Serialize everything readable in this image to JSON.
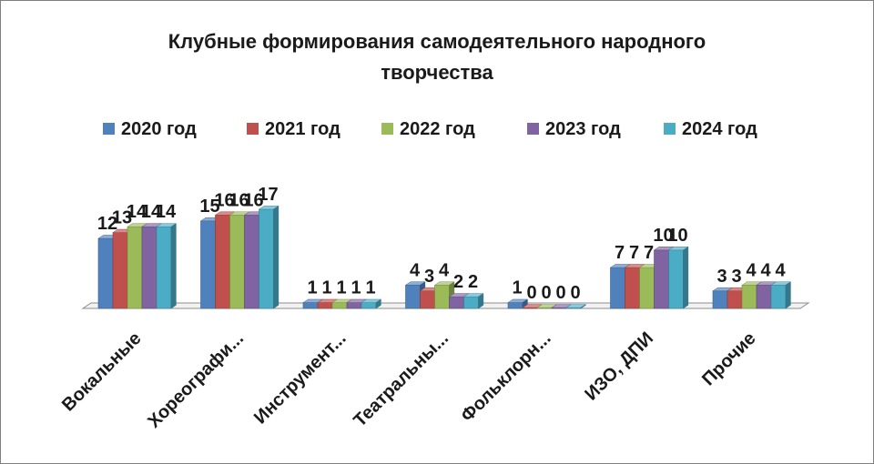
{
  "chart_data": {
    "type": "bar",
    "title": "Клубные формирования самодеятельного народного творчества",
    "categories": [
      "Вокальные",
      "Хореографи...",
      "Инструмент...",
      "Театральны...",
      "Фольклорн...",
      "ИЗО, ДПИ",
      "Прочие"
    ],
    "series": [
      {
        "name": "2020 год",
        "color": "#4f81bd",
        "values": [
          12,
          15,
          1,
          4,
          1,
          7,
          3
        ]
      },
      {
        "name": "2021 год",
        "color": "#c0504d",
        "values": [
          13,
          16,
          1,
          3,
          0,
          7,
          3
        ]
      },
      {
        "name": "2022 год",
        "color": "#9bbb59",
        "values": [
          14,
          16,
          1,
          4,
          0,
          7,
          4
        ]
      },
      {
        "name": "2023 год",
        "color": "#8064a2",
        "values": [
          14,
          16,
          1,
          2,
          0,
          10,
          4
        ]
      },
      {
        "name": "2024 год",
        "color": "#4bacc6",
        "values": [
          14,
          17,
          1,
          2,
          0,
          10,
          4
        ]
      }
    ],
    "ylim": [
      0,
      17
    ],
    "legend_position": "top",
    "grid": false,
    "data_labels": true,
    "style": "3d-clustered-column"
  }
}
